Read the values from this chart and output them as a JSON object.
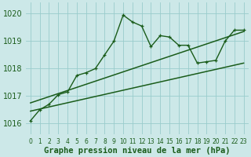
{
  "title": "Graphe pression niveau de la mer (hPa)",
  "bg_color": "#cce8e8",
  "grid_color": "#99cccc",
  "line_color": "#1a5c1a",
  "xlim": [
    -0.5,
    23.5
  ],
  "ylim": [
    1015.6,
    1020.4
  ],
  "yticks": [
    1016,
    1017,
    1018,
    1019,
    1020
  ],
  "xticks": [
    0,
    1,
    2,
    3,
    4,
    5,
    6,
    7,
    8,
    9,
    10,
    11,
    12,
    13,
    14,
    15,
    16,
    17,
    18,
    19,
    20,
    21,
    22,
    23
  ],
  "line1_x": [
    0,
    1,
    2,
    3,
    4,
    5,
    6,
    7,
    8,
    9,
    10,
    11,
    12,
    13,
    14,
    15,
    16,
    17,
    18,
    19,
    20,
    21,
    22,
    23
  ],
  "line1_y": [
    1016.1,
    1016.5,
    1016.7,
    1017.05,
    1017.15,
    1017.75,
    1017.85,
    1018.0,
    1018.5,
    1019.0,
    1019.95,
    1019.7,
    1019.55,
    1018.8,
    1019.2,
    1019.15,
    1018.85,
    1018.85,
    1018.2,
    1018.25,
    1018.3,
    1019.0,
    1019.4,
    1019.4
  ],
  "line2_x": [
    0,
    23
  ],
  "line2_y": [
    1016.45,
    1018.2
  ],
  "line3_x": [
    0,
    23
  ],
  "line3_y": [
    1016.75,
    1019.35
  ],
  "xlabel_fontsize": 7.5,
  "ytick_fontsize": 7,
  "xtick_fontsize": 5.5
}
